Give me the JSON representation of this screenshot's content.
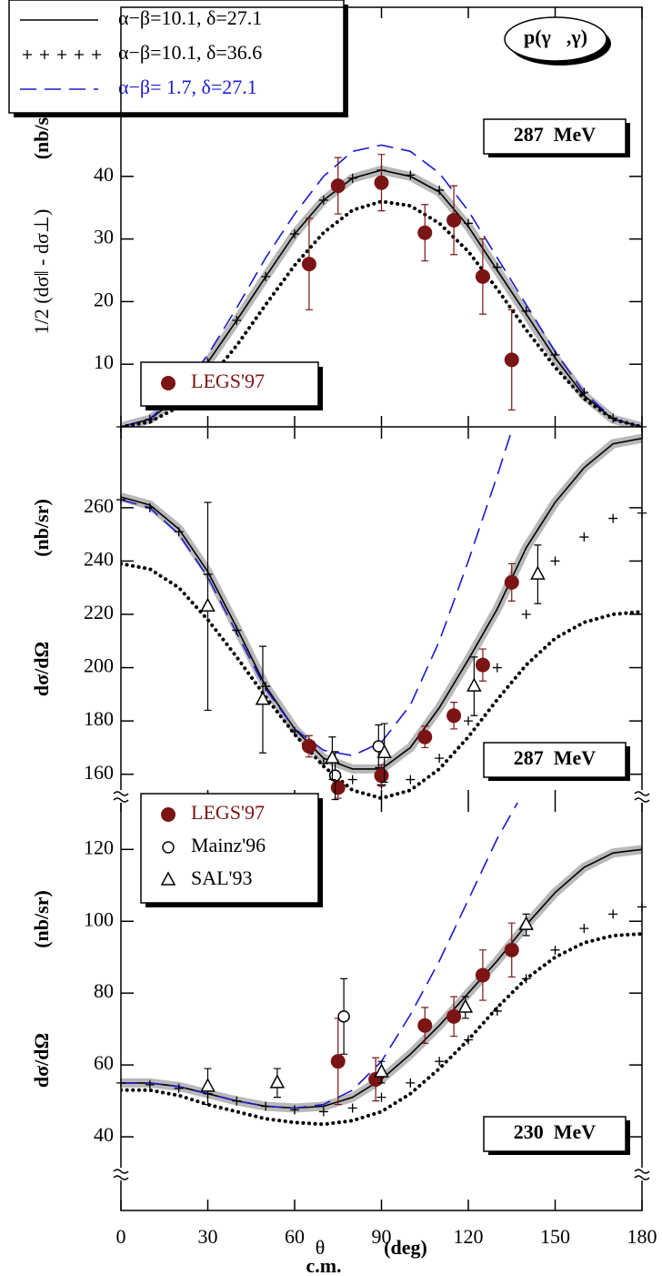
{
  "reaction": "p(γ⃗,γ)",
  "chart_data": [
    {
      "type": "line",
      "energy": "287  MeV",
      "ylabel": "1/2 (dσ‖ - dσ⊥)",
      "yunit": "(nb/sr)",
      "ylim": [
        0,
        67
      ],
      "yticks": [
        10,
        20,
        30,
        40
      ],
      "xlim": [
        0,
        180
      ],
      "series": [
        {
          "name": "α−β=10.1, δ=27.1",
          "style": "solid",
          "color": "#000000",
          "x": [
            0,
            10,
            20,
            30,
            40,
            50,
            60,
            70,
            80,
            90,
            100,
            110,
            120,
            130,
            140,
            150,
            160,
            170,
            180
          ],
          "values": [
            0,
            1.2,
            4.8,
            10.3,
            17,
            24,
            30.8,
            36.2,
            39.7,
            41,
            40,
            37.5,
            32,
            25,
            18,
            11,
            5,
            1.2,
            0
          ]
        },
        {
          "name": "α−β=10.1, δ=36.6",
          "style": "plus",
          "color": "#000000",
          "x": [
            0,
            10,
            20,
            30,
            40,
            50,
            60,
            70,
            80,
            90,
            100,
            110,
            120,
            130,
            140,
            150,
            160,
            170,
            180
          ],
          "values": [
            0,
            1.2,
            4.8,
            10.3,
            17,
            24,
            30.8,
            36.2,
            39.7,
            41,
            40.2,
            37.8,
            32.5,
            25.5,
            18.5,
            11.5,
            5.5,
            1.4,
            0
          ]
        },
        {
          "name": "α−β= 1.7, δ=27.1",
          "style": "dashed",
          "color": "#1a1acc",
          "x": [
            0,
            10,
            20,
            30,
            40,
            50,
            60,
            70,
            80,
            90,
            100,
            110,
            120,
            130,
            140,
            150,
            160,
            170,
            180
          ],
          "values": [
            0,
            1.3,
            5.5,
            11.5,
            19,
            27,
            34,
            40,
            44,
            45,
            44,
            40.5,
            34.5,
            27,
            19.5,
            12,
            5.5,
            1.3,
            0
          ]
        },
        {
          "style": "dotted",
          "color": "#000000",
          "x": [
            0,
            10,
            20,
            30,
            40,
            50,
            60,
            70,
            80,
            90,
            100,
            110,
            120,
            130,
            140,
            150,
            160,
            170,
            180
          ],
          "values": [
            0,
            0.8,
            3.2,
            7.3,
            13,
            19.5,
            25.8,
            31,
            34.6,
            36,
            35.3,
            32.5,
            28,
            22,
            15.5,
            9.5,
            4.5,
            1.2,
            0
          ]
        }
      ],
      "points": [
        {
          "name": "LEGS'97",
          "marker": "filled",
          "color": "#7b1414",
          "x": [
            65,
            75,
            90,
            105,
            115,
            125,
            135
          ],
          "values": [
            26,
            38.5,
            39,
            31,
            33,
            24,
            10.7
          ],
          "errors": [
            7.3,
            4.5,
            4.5,
            4.5,
            5.5,
            6,
            8
          ]
        }
      ]
    },
    {
      "type": "line",
      "energy": "287  MeV",
      "ylabel": "dσ/dΩ",
      "yunit": "(nb/sr)",
      "ylim": [
        150,
        290
      ],
      "yticks": [
        160,
        180,
        200,
        220,
        240,
        260
      ],
      "xlim": [
        0,
        180
      ],
      "series": [
        {
          "style": "solid",
          "color": "#000000",
          "x": [
            0,
            10,
            20,
            30,
            40,
            50,
            60,
            70,
            80,
            90,
            100,
            110,
            120,
            130,
            140,
            150,
            160,
            170,
            180
          ],
          "values": [
            264,
            261,
            252,
            236,
            215,
            193,
            177,
            166,
            162,
            162,
            170,
            185,
            203,
            222,
            245,
            262,
            275,
            284,
            286
          ]
        },
        {
          "style": "plus",
          "color": "#000000",
          "x": [
            0,
            10,
            20,
            30,
            40,
            50,
            60,
            70,
            80,
            90,
            100,
            110,
            120,
            130,
            140,
            150,
            160,
            170,
            180
          ],
          "values": [
            263,
            260,
            251,
            235,
            214,
            193,
            176,
            164,
            158,
            156,
            158,
            166,
            180,
            200,
            220,
            240,
            249,
            256,
            258
          ]
        },
        {
          "style": "dashed",
          "color": "#1a1acc",
          "x": [
            0,
            10,
            20,
            30,
            40,
            50,
            60,
            70,
            80,
            90,
            100,
            110,
            120,
            130,
            135
          ],
          "values": [
            263,
            260,
            250,
            234,
            213,
            192,
            177,
            169,
            167,
            172,
            186,
            210,
            240,
            272,
            289
          ]
        },
        {
          "style": "dotted",
          "color": "#000000",
          "x": [
            0,
            10,
            20,
            30,
            40,
            50,
            60,
            70,
            80,
            90,
            100,
            110,
            120,
            130,
            140,
            150,
            160,
            170,
            180
          ],
          "values": [
            239,
            237,
            230,
            218,
            204,
            189,
            175,
            163,
            154,
            151,
            154,
            162,
            174,
            188,
            201,
            211,
            217,
            220,
            221
          ]
        }
      ],
      "points": [
        {
          "marker": "filled",
          "color": "#7b1414",
          "x": [
            65,
            75,
            90,
            105,
            115,
            125,
            135
          ],
          "values": [
            170.5,
            155,
            159.5,
            174,
            182,
            201,
            232
          ],
          "errors": [
            4,
            4,
            4,
            4,
            5,
            6,
            7
          ]
        },
        {
          "marker": "open-circle",
          "color": "#000000",
          "x": [
            74,
            89
          ],
          "values": [
            159.5,
            170.5
          ],
          "errors": [
            9,
            8
          ]
        },
        {
          "marker": "triangle",
          "color": "#000000",
          "x": [
            30,
            49,
            73,
            91,
            122,
            144
          ],
          "values": [
            223,
            188,
            166,
            168,
            193,
            235
          ],
          "errors": [
            39,
            20,
            8,
            11,
            11,
            11
          ]
        }
      ]
    },
    {
      "type": "line",
      "energy": "230  MeV",
      "ylabel": "dσ/dΩ",
      "yunit": "(nb/sr)",
      "ylim": [
        19.5,
        133.5
      ],
      "yticks": [
        40,
        60,
        80,
        100,
        120
      ],
      "xlim": [
        0,
        180
      ],
      "xticks": [
        0,
        30,
        60,
        90,
        120,
        150,
        180
      ],
      "xlabel": "θ",
      "xlabel_sub": "c.m.",
      "xunit": "(deg)",
      "series": [
        {
          "style": "solid",
          "color": "#000000",
          "x": [
            0,
            10,
            20,
            30,
            40,
            50,
            60,
            70,
            80,
            90,
            100,
            110,
            120,
            130,
            140,
            150,
            160,
            170,
            180
          ],
          "values": [
            55,
            55,
            54,
            52,
            50,
            48.5,
            48,
            48.5,
            51,
            56,
            63,
            71,
            80,
            89,
            99,
            108,
            115,
            119,
            120
          ]
        },
        {
          "style": "plus",
          "color": "#000000",
          "x": [
            0,
            10,
            20,
            30,
            40,
            50,
            60,
            70,
            80,
            90,
            100,
            110,
            120,
            130,
            140,
            150,
            160,
            170,
            180
          ],
          "values": [
            55,
            54.5,
            53.5,
            52,
            50,
            48.5,
            47.5,
            47,
            48,
            51,
            55,
            61,
            67,
            75,
            84,
            92,
            98,
            102,
            104
          ]
        },
        {
          "style": "dashed",
          "color": "#1a1acc",
          "x": [
            0,
            10,
            20,
            30,
            40,
            50,
            60,
            70,
            80,
            90,
            100,
            110,
            120,
            130,
            137
          ],
          "values": [
            55,
            55,
            54,
            52,
            50,
            48.5,
            48,
            49,
            53,
            61,
            74,
            89,
            106,
            123,
            133
          ]
        },
        {
          "style": "dotted",
          "color": "#000000",
          "x": [
            0,
            10,
            20,
            30,
            40,
            50,
            60,
            70,
            80,
            90,
            100,
            110,
            120,
            130,
            140,
            150,
            160,
            170,
            180
          ],
          "values": [
            53,
            53,
            51.5,
            49,
            47,
            45,
            44,
            43.5,
            44.5,
            47,
            52,
            59,
            67,
            76,
            84,
            90,
            94,
            96,
            96.5
          ]
        }
      ],
      "points": [
        {
          "name": "LEGS'97",
          "marker": "filled",
          "color": "#7b1414",
          "x": [
            75,
            88,
            105,
            115,
            125,
            135
          ],
          "values": [
            61,
            56,
            71,
            73.5,
            85,
            92
          ],
          "errors": [
            12,
            6,
            5,
            5.5,
            7,
            7.5
          ]
        },
        {
          "name": "Mainz'96",
          "marker": "open-circle",
          "color": "#000000",
          "x": [
            77
          ],
          "values": [
            73.5
          ],
          "errors": [
            10.5
          ]
        },
        {
          "name": "SAL'93",
          "marker": "triangle",
          "color": "#000000",
          "x": [
            30,
            54,
            90,
            119,
            140
          ],
          "values": [
            54,
            55,
            58,
            76,
            99
          ],
          "errors": [
            5,
            4,
            3,
            3,
            3
          ]
        }
      ]
    }
  ]
}
